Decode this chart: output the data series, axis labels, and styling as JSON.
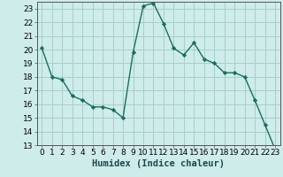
{
  "x": [
    0,
    1,
    2,
    3,
    4,
    5,
    6,
    7,
    8,
    9,
    10,
    11,
    12,
    13,
    14,
    15,
    16,
    17,
    18,
    19,
    20,
    21,
    22,
    23
  ],
  "y": [
    20.1,
    18.0,
    17.8,
    16.6,
    16.3,
    15.8,
    15.8,
    15.6,
    15.0,
    19.8,
    23.2,
    23.4,
    21.9,
    20.1,
    19.6,
    20.5,
    19.3,
    19.0,
    18.3,
    18.3,
    18.0,
    16.3,
    14.5,
    12.7
  ],
  "line_color": "#1a6e5e",
  "marker": "D",
  "marker_size": 2.2,
  "bg_color": "#ceecea",
  "grid_color": "#a8ceca",
  "xlabel": "Humidex (Indice chaleur)",
  "xlim": [
    -0.5,
    23.5
  ],
  "ylim": [
    13,
    23.5
  ],
  "yticks": [
    13,
    14,
    15,
    16,
    17,
    18,
    19,
    20,
    21,
    22,
    23
  ],
  "xticks": [
    0,
    1,
    2,
    3,
    4,
    5,
    6,
    7,
    8,
    9,
    10,
    11,
    12,
    13,
    14,
    15,
    16,
    17,
    18,
    19,
    20,
    21,
    22,
    23
  ],
  "xlabel_fontsize": 7.5,
  "tick_fontsize": 6.5,
  "line_width": 1.0
}
